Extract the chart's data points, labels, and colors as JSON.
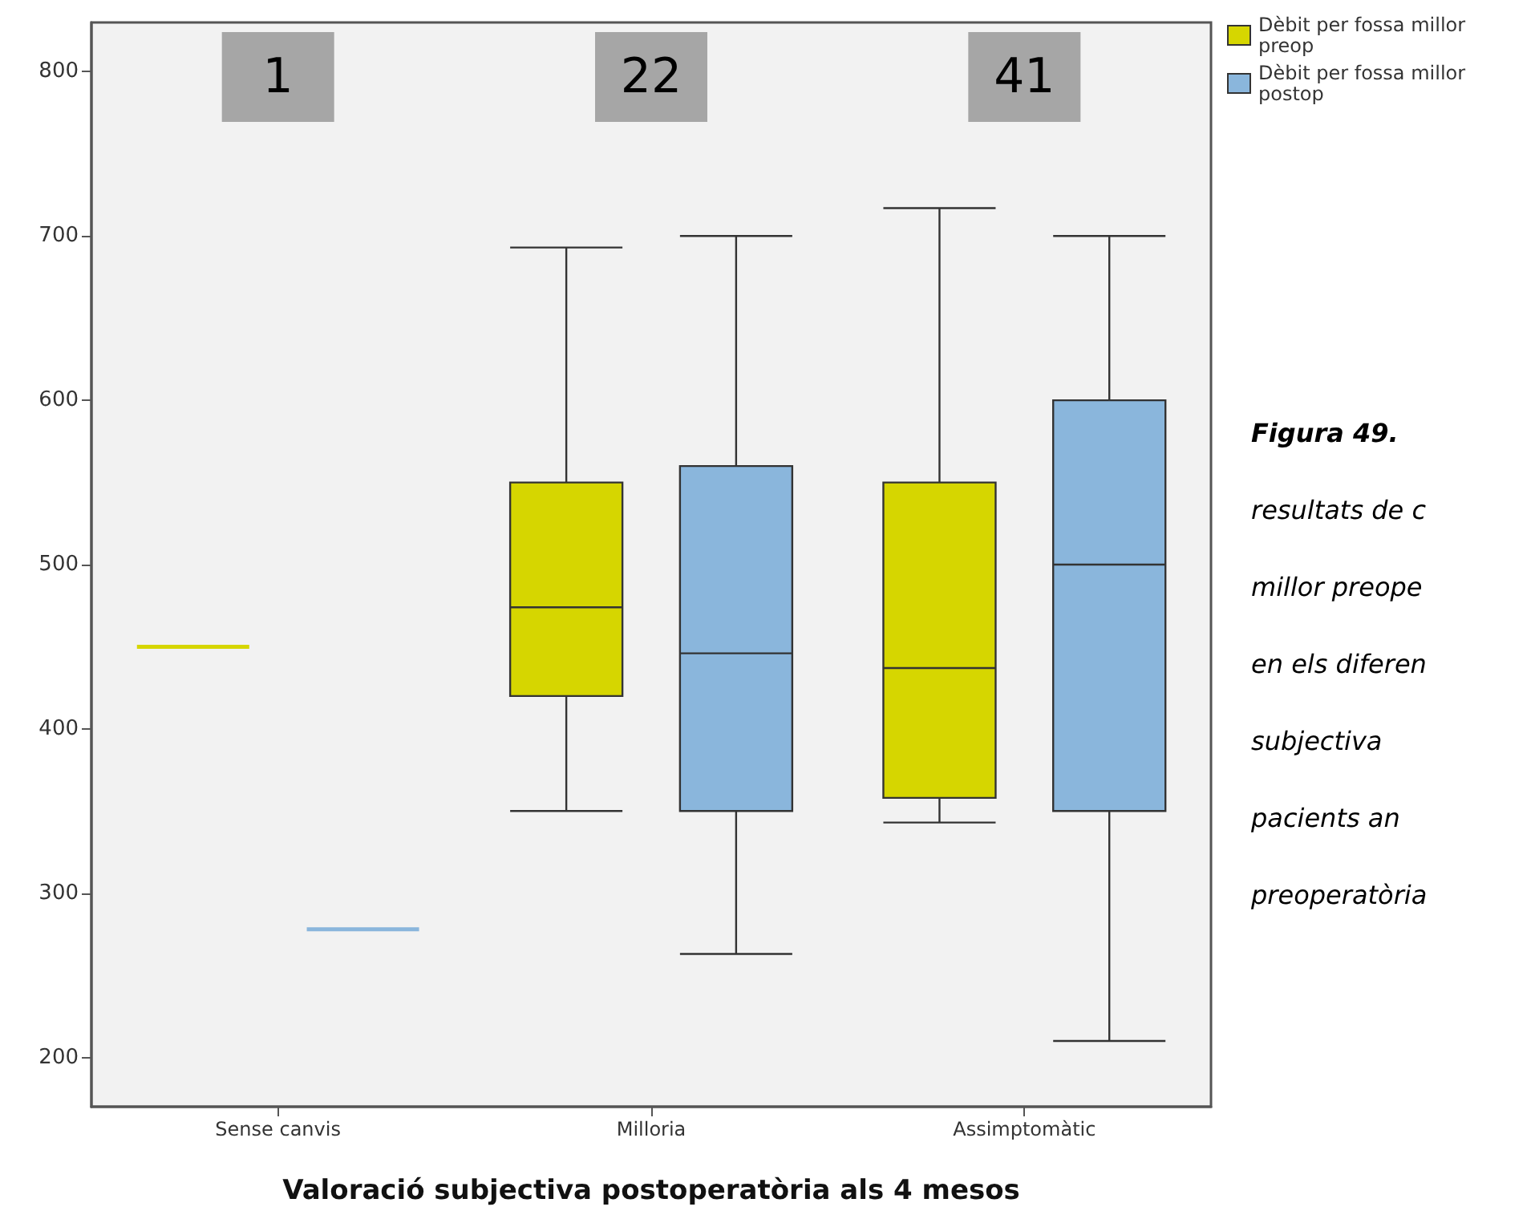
{
  "chart_data": {
    "type": "box",
    "xlabel": "Valoració subjectiva postoperatòria als 4 mesos",
    "categories": [
      "Sense canvis",
      "Milloria",
      "Assimptomàtic"
    ],
    "series": [
      {
        "name": "Dèbit per fossa millor preop",
        "color": "#d6d600",
        "boxes": [
          {
            "low": 450,
            "q1": 450,
            "median": 450,
            "q3": 450,
            "high": 450
          },
          {
            "low": 350,
            "q1": 420,
            "median": 474,
            "q3": 550,
            "high": 693
          },
          {
            "low": 343,
            "q1": 358,
            "median": 437,
            "q3": 550,
            "high": 717
          }
        ]
      },
      {
        "name": "Dèbit per fossa millor postop",
        "color": "#8ab6dc",
        "boxes": [
          {
            "low": 278,
            "q1": 278,
            "median": 278,
            "q3": 278,
            "high": 278
          },
          {
            "low": 263,
            "q1": 350,
            "median": 446,
            "q3": 560,
            "high": 700
          },
          {
            "low": 210,
            "q1": 350,
            "median": 500,
            "q3": 600,
            "high": 700
          }
        ]
      }
    ],
    "ylim": [
      170,
      830
    ],
    "yticks": [
      200,
      300,
      400,
      500,
      600,
      700,
      800
    ],
    "grid": false,
    "legend": "top right",
    "annotations": [
      "1",
      "22",
      "41",
      "Figura 49.",
      "resultats de c",
      "millor preope",
      "en els diferen",
      "subjectiva",
      "pacients an",
      "preoperatòria"
    ]
  }
}
